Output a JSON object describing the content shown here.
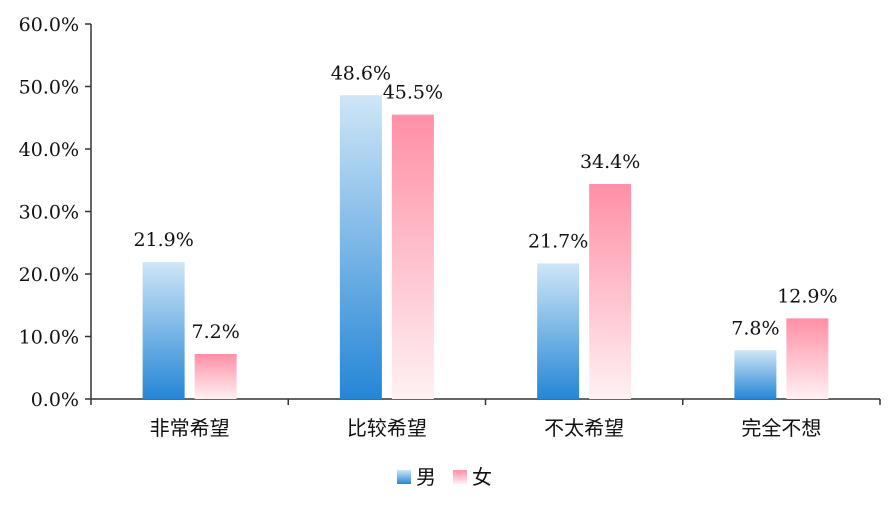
{
  "chart_data": {
    "type": "bar",
    "categories": [
      "非常希望",
      "比较希望",
      "不太希望",
      "完全不想"
    ],
    "series": [
      {
        "name": "男",
        "values": [
          21.9,
          48.6,
          21.7,
          7.8
        ]
      },
      {
        "name": "女",
        "values": [
          7.2,
          45.5,
          34.4,
          12.9
        ]
      }
    ],
    "value_labels": [
      [
        "21.9%",
        "48.6%",
        "21.7%",
        "7.8%"
      ],
      [
        "7.2%",
        "45.5%",
        "34.4%",
        "12.9%"
      ]
    ],
    "y_ticks": [
      "0.0%",
      "10.0%",
      "20.0%",
      "30.0%",
      "40.0%",
      "50.0%",
      "60.0%"
    ],
    "ylim": [
      0,
      60
    ],
    "grid": false,
    "legend_position": "bottom",
    "colors": {
      "male_top": "#cfe6f7",
      "male_bottom": "#2586d6",
      "female_top": "#ff8fa6",
      "female_bottom": "#fff1f3",
      "axis": "#333333"
    }
  }
}
